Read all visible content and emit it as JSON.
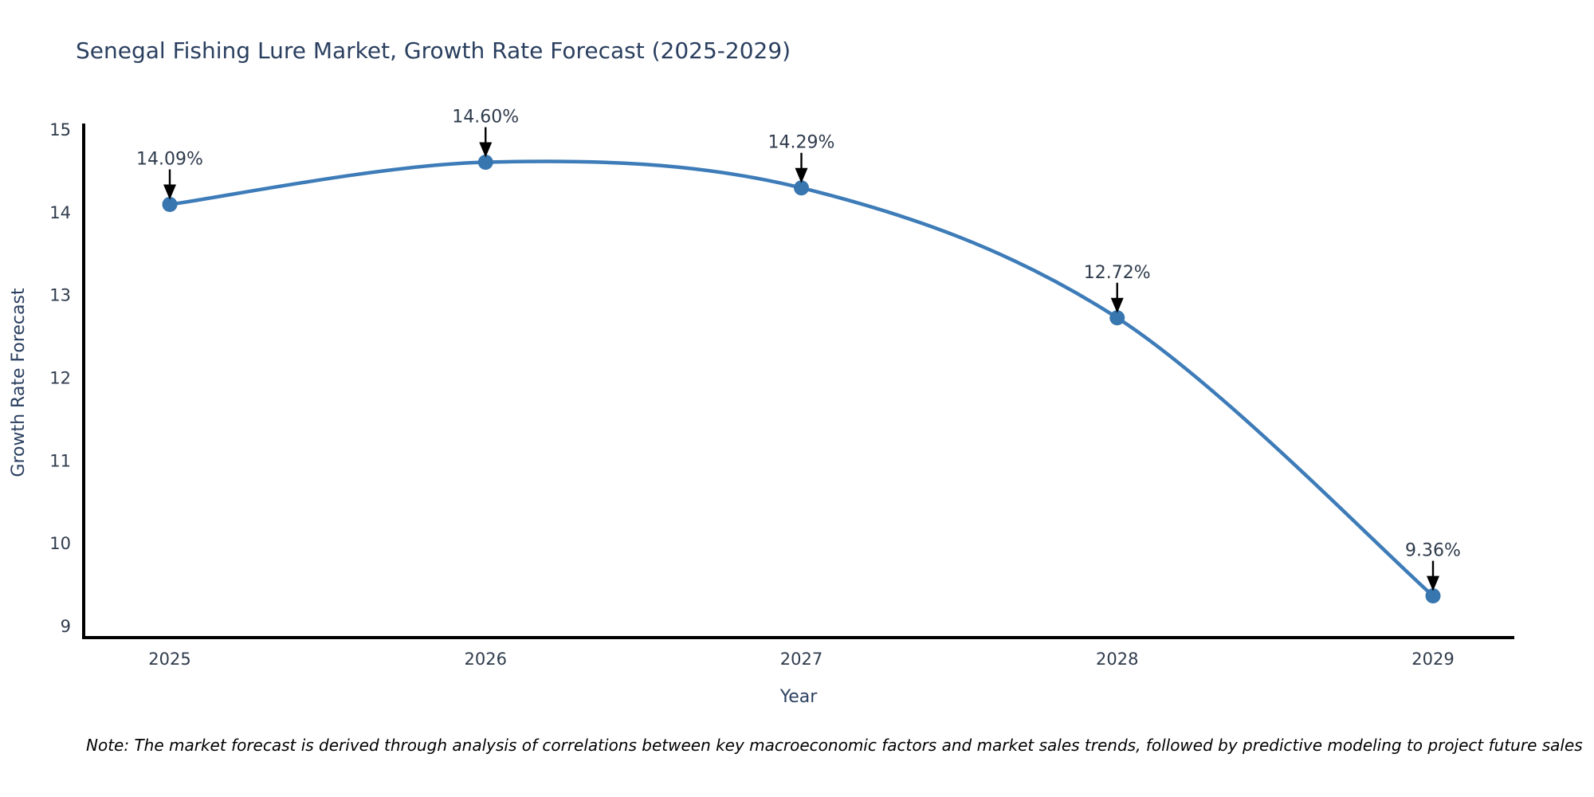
{
  "page": {
    "background": "#ffffff"
  },
  "chart_data": {
    "type": "line",
    "title": "Senegal Fishing Lure Market, Growth Rate Forecast (2025-2029)",
    "xlabel": "Year",
    "ylabel": "Growth Rate Forecast",
    "categories": [
      "2025",
      "2026",
      "2027",
      "2028",
      "2029"
    ],
    "series": [
      {
        "name": "Growth Rate Forecast",
        "values": [
          14.09,
          14.6,
          14.29,
          12.72,
          9.36
        ]
      }
    ],
    "point_labels": [
      "14.09%",
      "14.60%",
      "14.29%",
      "12.72%",
      "9.36%"
    ],
    "yticks": [
      9,
      10,
      11,
      12,
      13,
      14,
      15
    ],
    "ylim": [
      8.85,
      15.05
    ],
    "grid": false,
    "legend_position": "none",
    "line_shape": "spline",
    "marker": "circle",
    "annotation_arrows": true,
    "colors": {
      "line": "#3d7cb8",
      "marker": "#3776ae",
      "axis": "#000000",
      "title_text": "#2a3f5f",
      "axis_title_text": "#2a3f5f",
      "tick_text": "#2f3b4c",
      "annotation_text": "#2f3b4c",
      "arrow": "#000000",
      "note_text": "#000000"
    },
    "note": "Note: The market forecast is derived through analysis of correlations between key macroeconomic factors and market sales trends, followed by predictive modeling to project future sales"
  }
}
